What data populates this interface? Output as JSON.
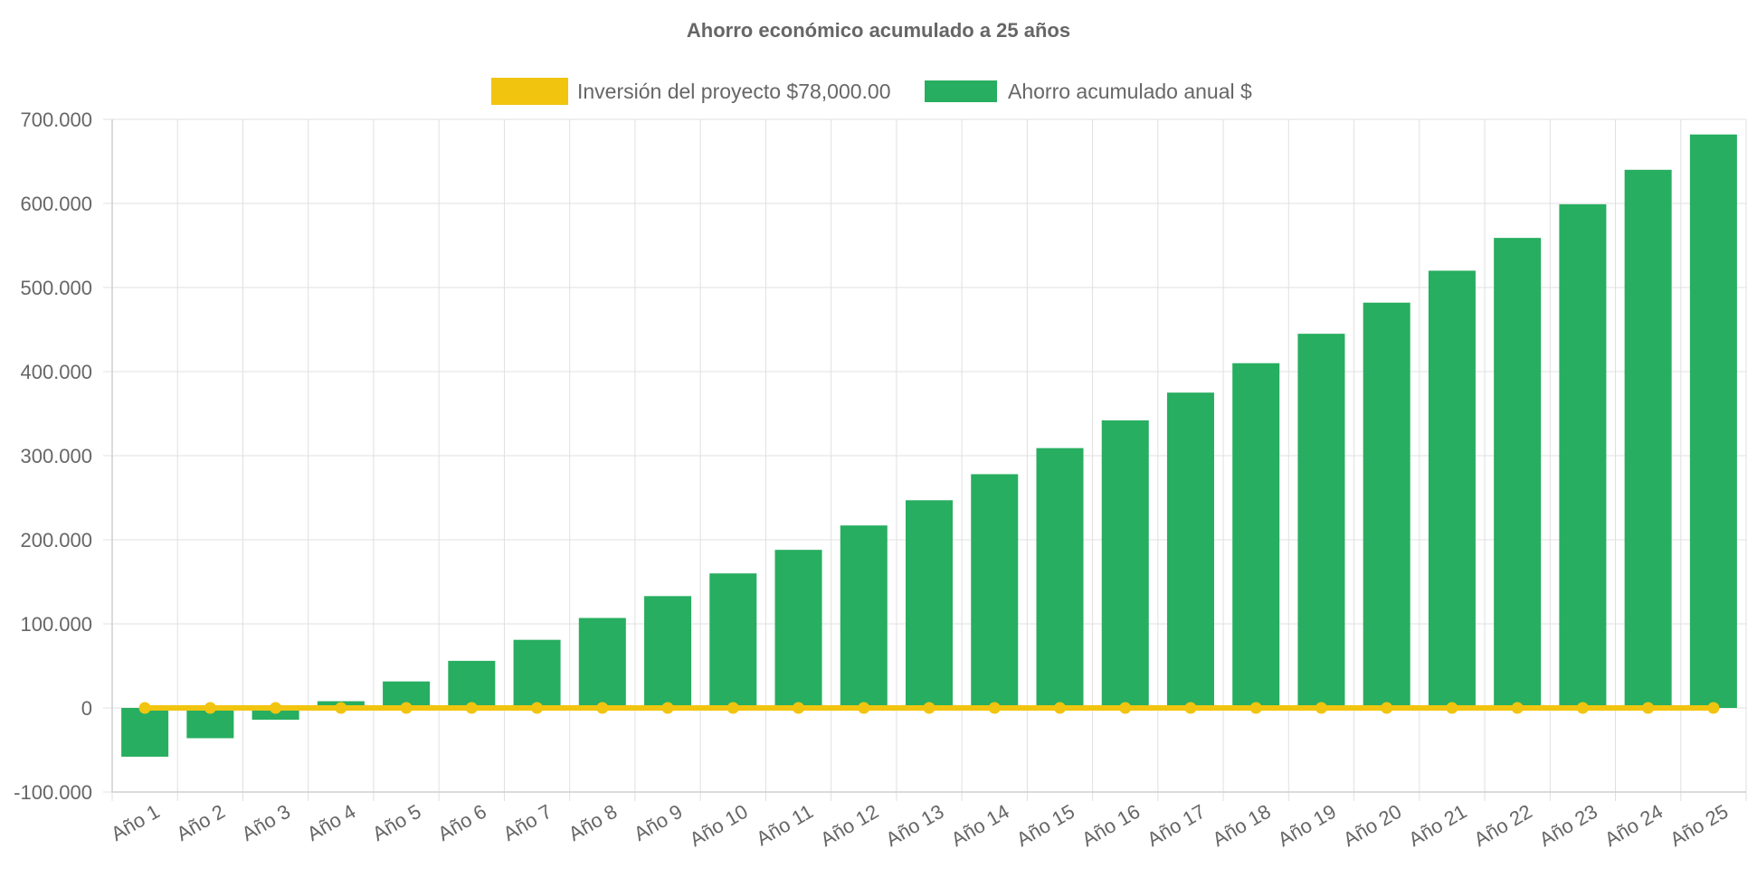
{
  "chart_data": {
    "type": "bar",
    "title": "Ahorro económico acumulado a 25 años",
    "xlabel": "",
    "ylabel": "",
    "ylim": [
      -100000,
      700000
    ],
    "yticks": [
      -100000,
      0,
      100000,
      200000,
      300000,
      400000,
      500000,
      600000,
      700000
    ],
    "ytick_labels": [
      "-100.000",
      "0",
      "100.000",
      "200.000",
      "300.000",
      "400.000",
      "500.000",
      "600.000",
      "700.000"
    ],
    "grid": true,
    "legend_position": "top-center",
    "categories": [
      "Año 1",
      "Año 2",
      "Año 3",
      "Año 4",
      "Año 5",
      "Año 6",
      "Año 7",
      "Año 8",
      "Año 9",
      "Año 10",
      "Año 11",
      "Año 12",
      "Año 13",
      "Año 14",
      "Año 15",
      "Año 16",
      "Año 17",
      "Año 18",
      "Año 19",
      "Año 20",
      "Año 21",
      "Año 22",
      "Año 23",
      "Año 24",
      "Año 25"
    ],
    "series": [
      {
        "name": "Inversión del proyecto $78,000.00",
        "type": "line",
        "color": "#f1c40f",
        "values": [
          0,
          0,
          0,
          0,
          0,
          0,
          0,
          0,
          0,
          0,
          0,
          0,
          0,
          0,
          0,
          0,
          0,
          0,
          0,
          0,
          0,
          0,
          0,
          0,
          0
        ]
      },
      {
        "name": "Ahorro acumulado anual $",
        "type": "bar",
        "color": "#27ae60",
        "values": [
          -58000,
          -36000,
          -14000,
          8000,
          31500,
          56000,
          81000,
          107000,
          133000,
          160000,
          188000,
          217000,
          247000,
          278000,
          309000,
          342000,
          375000,
          410000,
          445000,
          482000,
          520000,
          559000,
          599000,
          640000,
          682000
        ]
      }
    ]
  }
}
